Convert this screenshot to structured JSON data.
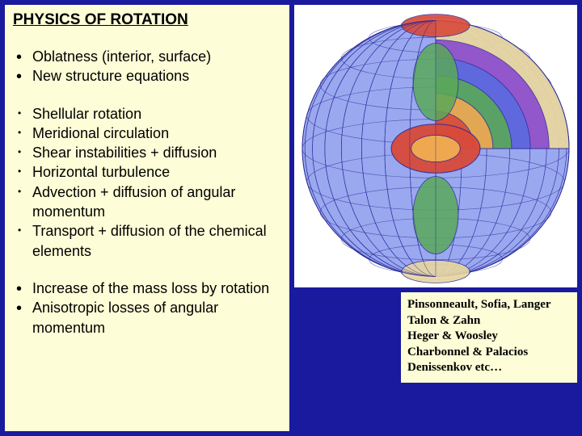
{
  "heading": "PHYSICS OF ROTATION",
  "group1": [
    "Oblatness (interior, surface)",
    "New structure equations"
  ],
  "group2": [
    "Shellular rotation",
    "Meridional circulation",
    "Shear instabilities +  diffusion",
    "Horizontal turbulence",
    "Advection  + diffusion of angular momentum",
    "Transport  + diffusion of the chemical elements"
  ],
  "group3": [
    "Increase of the mass loss by rotation",
    "Anisotropic losses of angular momentum"
  ],
  "credits": [
    "Pinsonneault, Sofia, Langer",
    "Talon & Zahn",
    "Heger & Woosley",
    "Charbonnel & Palacios",
    "Denissenkov  etc…"
  ],
  "figure": {
    "description": "cutaway-rotating-star-sphere",
    "background": "#ffffff",
    "palette": {
      "navy": "#2a2a9a",
      "blue": "#5a6adf",
      "lightblue": "#9aa8ef",
      "violet": "#8a4ad0",
      "red": "#d84a3a",
      "orange": "#f0a850",
      "green": "#5aa85a",
      "tan": "#e8d6a0"
    },
    "outer_radius": 165,
    "inner_core_radius": 55,
    "lat_lines": 12,
    "lon_lines": 16
  }
}
